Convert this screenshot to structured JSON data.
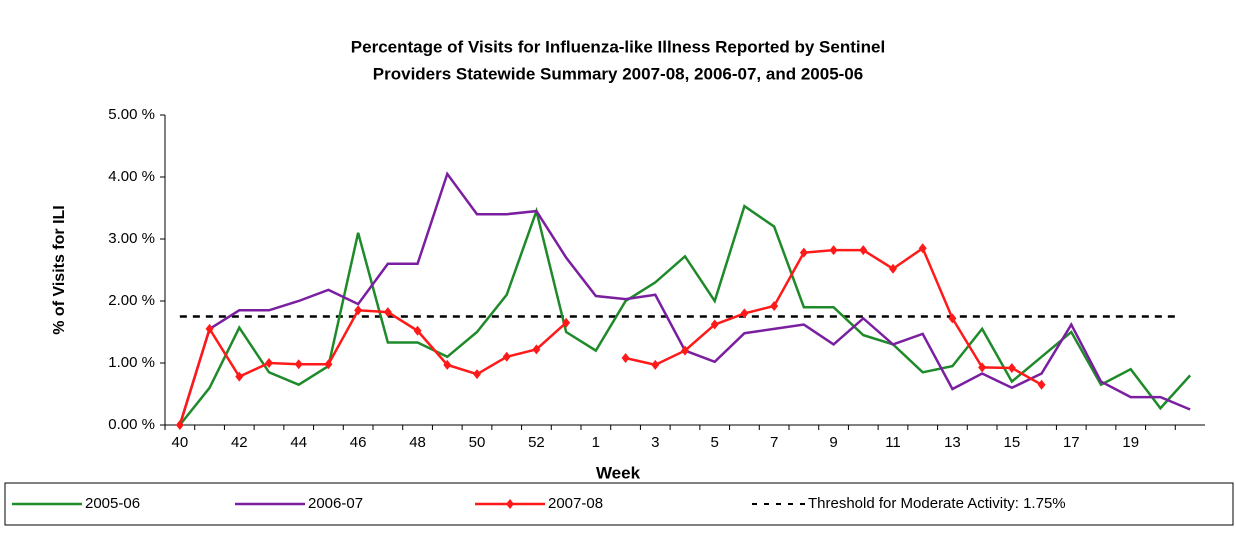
{
  "chart_data": {
    "type": "line",
    "title": "Percentage of Visits for Influenza-like Illness Reported by Sentinel",
    "subtitle": "Providers Statewide Summary 2007-08, 2006-07, and 2005-06",
    "x_label": "Week",
    "y_label": "% of Visits for ILI",
    "categories": [
      "40",
      null,
      "42",
      null,
      "44",
      null,
      "46",
      null,
      "48",
      null,
      "50",
      null,
      "52",
      null,
      "1",
      null,
      "3",
      null,
      "5",
      null,
      "7",
      null,
      "9",
      null,
      "11",
      null,
      "13",
      null,
      "15",
      null,
      "17",
      null,
      "19",
      null,
      null
    ],
    "ylim": [
      0,
      5
    ],
    "yticks": [
      {
        "value": 0,
        "label": "0.00 %"
      },
      {
        "value": 1,
        "label": "1.00 %"
      },
      {
        "value": 2,
        "label": "2.00 %"
      },
      {
        "value": 3,
        "label": "3.00 %"
      },
      {
        "value": 4,
        "label": "4.00 %"
      },
      {
        "value": 5,
        "label": "5.00 %"
      }
    ],
    "series": [
      {
        "name": "2005-06",
        "color": "#1f8a2a",
        "values": [
          0,
          0.6,
          1.57,
          0.85,
          0.65,
          0.95,
          3.1,
          1.33,
          1.33,
          1.1,
          1.5,
          2.1,
          3.45,
          1.5,
          1.2,
          2.0,
          2.3,
          2.72,
          2.0,
          3.53,
          3.2,
          1.9,
          1.9,
          1.45,
          1.3,
          0.85,
          0.95,
          1.55,
          0.7,
          1.1,
          1.5,
          0.65,
          0.9,
          0.27,
          0.8
        ]
      },
      {
        "name": "2006-07",
        "color": "#7a1fa0",
        "values": [
          0,
          1.55,
          1.85,
          1.85,
          2.0,
          2.18,
          1.95,
          2.6,
          2.6,
          4.05,
          3.4,
          3.4,
          3.45,
          2.7,
          2.08,
          2.03,
          2.1,
          1.2,
          1.02,
          1.48,
          1.55,
          1.62,
          1.3,
          1.72,
          1.3,
          1.47,
          0.58,
          0.83,
          0.6,
          0.83,
          1.62,
          0.7,
          0.45,
          0.45,
          0.25
        ]
      },
      {
        "name": "2007-08",
        "color": "#ff1a1a",
        "markers": true,
        "values": [
          0,
          1.55,
          0.78,
          1.0,
          0.98,
          0.98,
          1.85,
          1.82,
          1.52,
          0.97,
          0.82,
          1.1,
          1.22,
          1.65,
          null,
          1.08,
          0.97,
          1.2,
          1.62,
          1.8,
          1.92,
          2.78,
          2.82,
          2.82,
          2.52,
          2.85,
          1.72,
          0.93,
          0.92,
          0.65,
          null,
          null,
          null,
          null,
          null
        ]
      }
    ],
    "threshold": {
      "name": "Threshold for Moderate Activity: 1.75%",
      "value": 1.75,
      "color": "#000000"
    }
  }
}
